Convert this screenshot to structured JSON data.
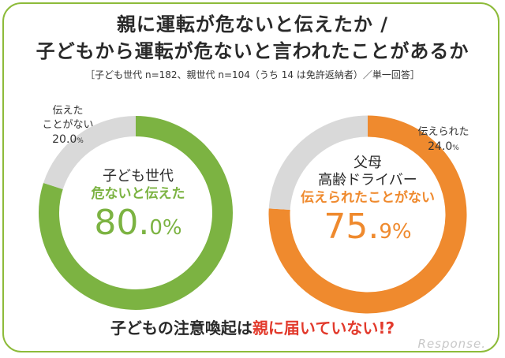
{
  "title": {
    "line1": "親に運転が危ないと伝えたか /",
    "line2": "子どもから運転が危ないと言われたことがあるか"
  },
  "subtitle": "［子ども世代 n=182、親世代 n=104（うち 14 は免許返納者）／単一回答］",
  "chart_data": [
    {
      "type": "pie",
      "title": "子ども世代",
      "slices": [
        {
          "label": "危ないと伝えた",
          "value": 80.0,
          "color": "#7cb342"
        },
        {
          "label": "伝えたことがない",
          "value": 20.0,
          "color": "#d9d9d9"
        }
      ],
      "center": {
        "title": "子ども世代",
        "subtitle": "危ないと伝えた",
        "value_main": "80.",
        "value_small": "0",
        "value_pct": "%"
      },
      "outer_label": {
        "line1": "伝えた",
        "line2": "ことがない",
        "value": "20.0",
        "pct": "%"
      }
    },
    {
      "type": "pie",
      "title": "父母高齢ドライバー",
      "slices": [
        {
          "label": "伝えられたことがない",
          "value": 75.9,
          "color": "#ef8a2e"
        },
        {
          "label": "伝えられた",
          "value": 24.0,
          "color": "#d9d9d9"
        }
      ],
      "center": {
        "title_line1": "父母",
        "title_line2": "高齢ドライバー",
        "subtitle": "伝えられたことがない",
        "value_main": "75.",
        "value_small": "9",
        "value_pct": "%"
      },
      "outer_label": {
        "line1": "伝えられた",
        "value": "24.0",
        "pct": "%"
      }
    }
  ],
  "footer": {
    "prefix": "子どもの注意喚起は",
    "emphasis": "親に届いていない!?"
  },
  "watermark": "Response."
}
